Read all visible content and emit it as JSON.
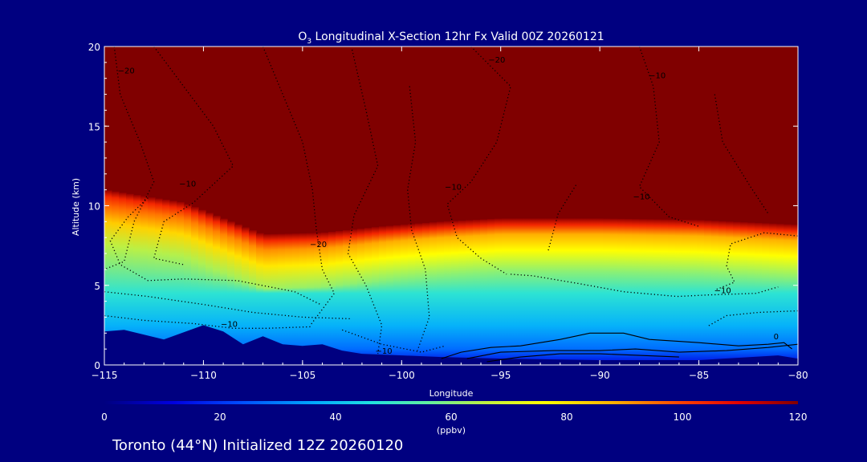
{
  "chart_data": {
    "type": "heatmap",
    "title_main": "O",
    "title_sub": "3",
    "title_rest": " Longitudinal X-Section 12hr  Fx Valid 00Z 20260121",
    "xlabel": "Longitude",
    "ylabel": "Altitude (km)",
    "xlim": [
      -115,
      -80
    ],
    "ylim": [
      0,
      20
    ],
    "x_ticks": [
      -115,
      -110,
      -105,
      -100,
      -95,
      -90,
      -85,
      -80
    ],
    "x_tick_labels": [
      "−115",
      "−110",
      "−105",
      "−100",
      "−95",
      "−90",
      "−85",
      "−80"
    ],
    "y_ticks": [
      0,
      5,
      10,
      15,
      20
    ],
    "y_tick_labels": [
      "0",
      "5",
      "10",
      "15",
      "20"
    ],
    "colorbar": {
      "min": 0,
      "max": 120,
      "ticks": [
        0,
        20,
        40,
        60,
        80,
        100,
        120
      ],
      "tick_labels": [
        "0",
        "20",
        "40",
        "60",
        "80",
        "100",
        "120"
      ],
      "unit": "(ppbv)"
    },
    "colormap": [
      {
        "v": 0,
        "c": "#000080"
      },
      {
        "v": 12,
        "c": "#0000e0"
      },
      {
        "v": 24,
        "c": "#0050ff"
      },
      {
        "v": 36,
        "c": "#00a8ff"
      },
      {
        "v": 46,
        "c": "#20e0e0"
      },
      {
        "v": 56,
        "c": "#60f0a0"
      },
      {
        "v": 66,
        "c": "#c0f040"
      },
      {
        "v": 76,
        "c": "#ffff00"
      },
      {
        "v": 88,
        "c": "#ffb000"
      },
      {
        "v": 100,
        "c": "#ff4000"
      },
      {
        "v": 110,
        "c": "#e00000"
      },
      {
        "v": 120,
        "c": "#800000"
      }
    ],
    "tropopause_km": [
      [
        -115,
        10.6
      ],
      [
        -113,
        10.2
      ],
      [
        -111,
        9.8
      ],
      [
        -109,
        8.8
      ],
      [
        -107,
        7.8
      ],
      [
        -104,
        7.9
      ],
      [
        -101,
        8.3
      ],
      [
        -98,
        8.6
      ],
      [
        -95,
        8.8
      ],
      [
        -90,
        8.8
      ],
      [
        -85,
        8.7
      ],
      [
        -80,
        8.4
      ]
    ],
    "terrain_km": [
      [
        -115,
        2.1
      ],
      [
        -114,
        2.2
      ],
      [
        -112,
        1.6
      ],
      [
        -110,
        2.5
      ],
      [
        -109,
        2.1
      ],
      [
        -108,
        1.3
      ],
      [
        -107,
        1.8
      ],
      [
        -106,
        1.3
      ],
      [
        -105,
        1.2
      ],
      [
        -104,
        1.3
      ],
      [
        -103,
        0.9
      ],
      [
        -102,
        0.7
      ],
      [
        -100,
        0.6
      ],
      [
        -98,
        0.5
      ],
      [
        -95,
        0.4
      ],
      [
        -90,
        0.3
      ],
      [
        -85,
        0.3
      ],
      [
        -81,
        0.6
      ],
      [
        -80,
        0.4
      ]
    ],
    "contour_labels": [
      {
        "x": -113.9,
        "y": 18.3,
        "text": "−20"
      },
      {
        "x": -95.2,
        "y": 19.0,
        "text": "−20"
      },
      {
        "x": -87.1,
        "y": 18.0,
        "text": "−10"
      },
      {
        "x": -110.8,
        "y": 11.2,
        "text": "−10"
      },
      {
        "x": -97.4,
        "y": 11.0,
        "text": "−10"
      },
      {
        "x": -87.9,
        "y": 10.4,
        "text": "−10"
      },
      {
        "x": -104.2,
        "y": 7.4,
        "text": "−20"
      },
      {
        "x": -83.8,
        "y": 4.5,
        "text": "−10"
      },
      {
        "x": -108.7,
        "y": 2.4,
        "text": "−10"
      },
      {
        "x": -100.9,
        "y": 0.7,
        "text": "−10"
      },
      {
        "x": -81.1,
        "y": 1.6,
        "text": "0"
      }
    ]
  },
  "footer": {
    "location": "Toronto (44°N) Initialized 12Z 20260120"
  }
}
